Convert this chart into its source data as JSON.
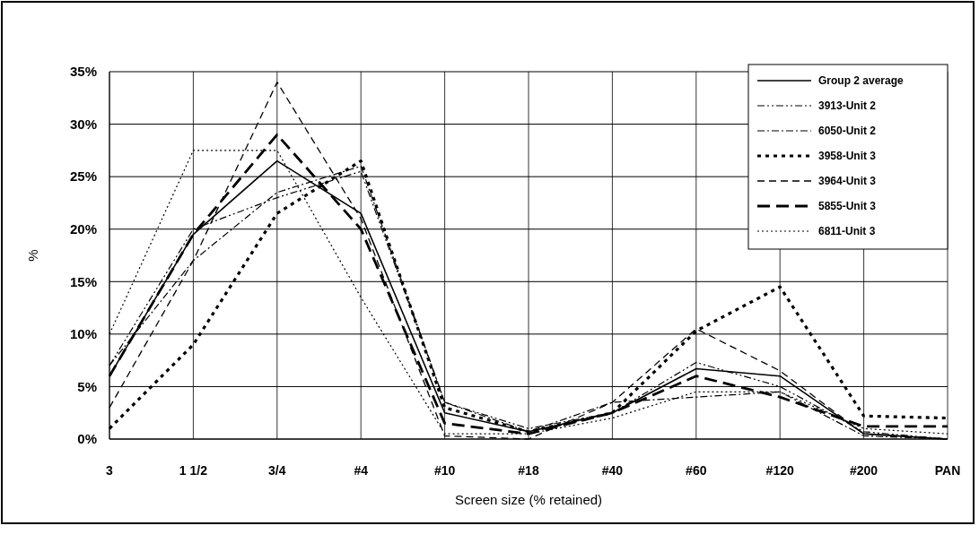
{
  "chart_data": {
    "type": "line",
    "xlabel": "Screen size (% retained)",
    "ylabel": "%",
    "categories": [
      "3",
      "1 1/2",
      "3/4",
      "#4",
      "#10",
      "#18",
      "#40",
      "#60",
      "#120",
      "#200",
      "PAN"
    ],
    "ylim": [
      0,
      35
    ],
    "yticks": [
      {
        "value": 0,
        "label": "0%"
      },
      {
        "value": 5,
        "label": "5%"
      },
      {
        "value": 10,
        "label": "10%"
      },
      {
        "value": 15,
        "label": "15%"
      },
      {
        "value": 20,
        "label": "20%"
      },
      {
        "value": 25,
        "label": "25%"
      },
      {
        "value": 30,
        "label": "30%"
      },
      {
        "value": 35,
        "label": "35%"
      }
    ],
    "grid": true,
    "legend": "top right",
    "series": [
      {
        "name": "Group 2 average",
        "color": "#000000",
        "line_style": "solid",
        "values": [
          6,
          19.5,
          26.5,
          21.5,
          2.5,
          0.7,
          2.5,
          6.7,
          6,
          0.5,
          0
        ]
      },
      {
        "name": "3913-Unit 2",
        "color": "#000000",
        "line_style": "dashdotdot",
        "values": [
          7,
          20,
          23,
          25.5,
          3.5,
          1,
          2.5,
          7.3,
          5,
          0.7,
          0
        ]
      },
      {
        "name": "6050-Unit 2",
        "color": "#000000",
        "line_style": "dashdot",
        "values": [
          7,
          17,
          23.5,
          26,
          3.5,
          0.7,
          3.5,
          4,
          4.5,
          0.3,
          0
        ]
      },
      {
        "name": "3958-Unit 3",
        "color": "#000000",
        "line_style": "heavydotted",
        "values": [
          1,
          9,
          21.5,
          26.5,
          3,
          0.7,
          2.5,
          10.3,
          14.5,
          2.2,
          2
        ]
      },
      {
        "name": "3964-Unit 3",
        "color": "#000000",
        "line_style": "dashed",
        "values": [
          3,
          17,
          34,
          21,
          0.3,
          0,
          3.5,
          10.5,
          6.5,
          0.5,
          0
        ]
      },
      {
        "name": "5855-Unit 3",
        "color": "#000000",
        "line_style": "longdash",
        "values": [
          6,
          19.5,
          29,
          20,
          1.5,
          0.5,
          2.5,
          6,
          4,
          1.2,
          1.2
        ]
      },
      {
        "name": "6811-Unit 3",
        "color": "#000000",
        "line_style": "dotted",
        "values": [
          10,
          27.5,
          27.5,
          13.5,
          0.5,
          0.5,
          2,
          4.5,
          4.5,
          1,
          0.5
        ]
      }
    ]
  }
}
